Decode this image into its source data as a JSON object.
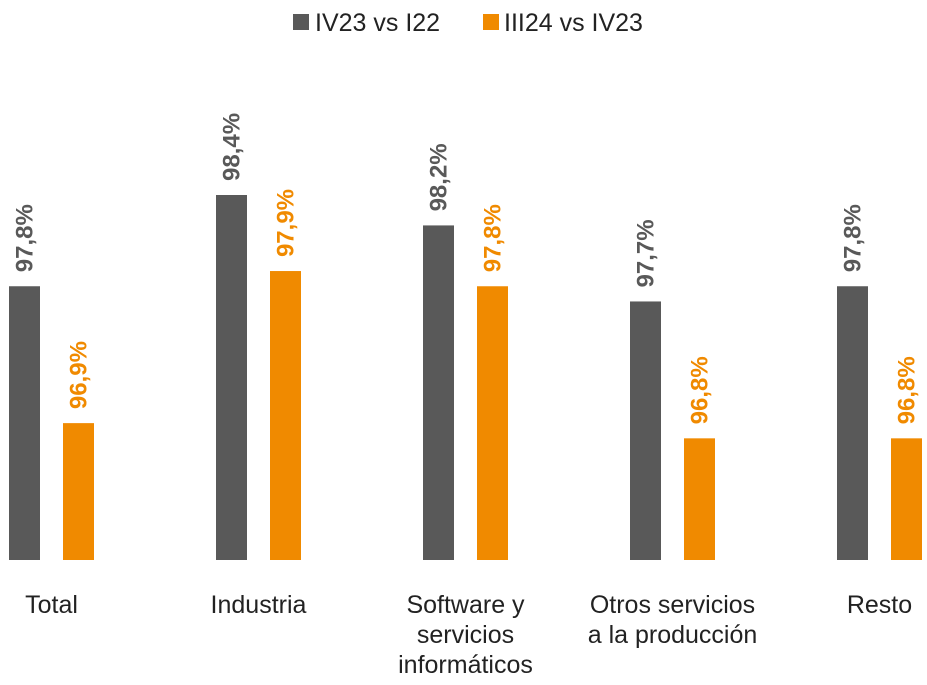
{
  "chart_data": {
    "type": "bar",
    "categories": [
      [
        "Total"
      ],
      [
        "Industria"
      ],
      [
        "Software y",
        "servicios",
        "informáticos"
      ],
      [
        "Otros servicios",
        "a la producción"
      ],
      [
        "Resto"
      ]
    ],
    "series": [
      {
        "name": "IV23 vs I22",
        "color": "#595959",
        "values": [
          97.8,
          98.4,
          98.2,
          97.7,
          97.8
        ],
        "labels": [
          "97,8%",
          "98,4%",
          "98,2%",
          "97,7%",
          "97,8%"
        ]
      },
      {
        "name": "III24 vs IV23",
        "color": "#F08A00",
        "values": [
          96.9,
          97.9,
          97.8,
          96.8,
          96.8
        ],
        "labels": [
          "96,9%",
          "97,9%",
          "97,8%",
          "96,8%",
          "96,8%"
        ]
      }
    ],
    "legend_position": "top-center",
    "grid": false,
    "value_labels_rotated": true
  }
}
